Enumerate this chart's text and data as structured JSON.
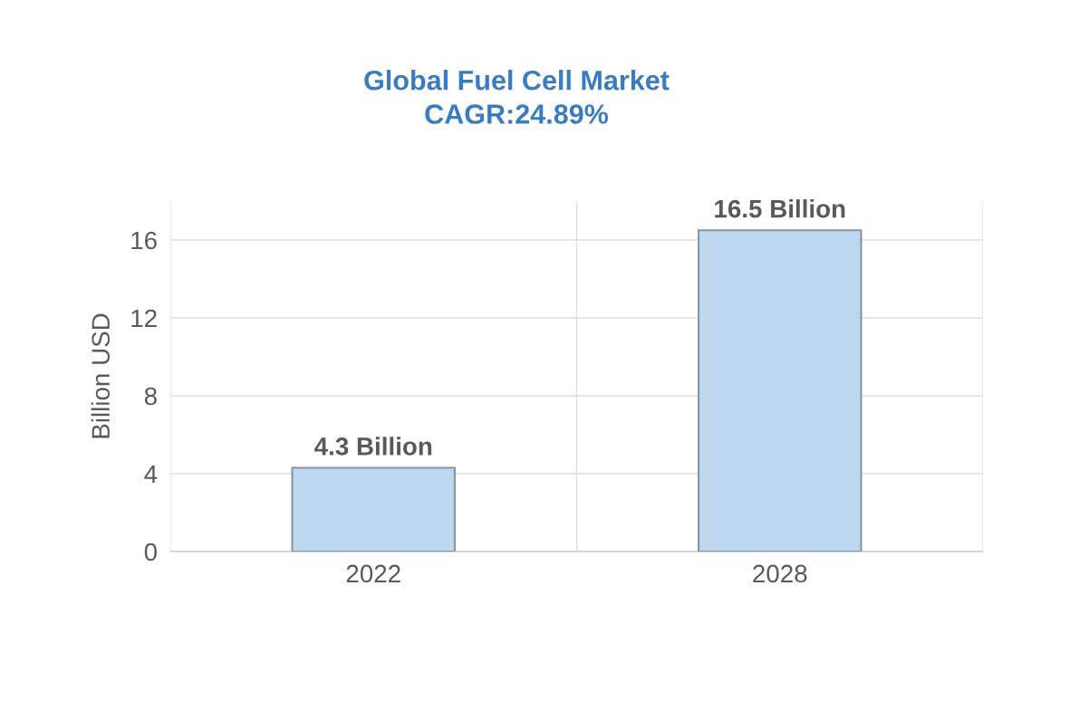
{
  "chart_data": {
    "type": "bar",
    "title": "Global Fuel Cell Market\nCAGR:24.89%",
    "ylabel": "Billion USD",
    "categories": [
      "2022",
      "2028"
    ],
    "values": [
      4.3,
      16.5
    ],
    "value_labels": [
      "4.3 Billion",
      "16.5 Billion"
    ],
    "color": "#bdd7ee",
    "ylim": [
      0,
      18
    ],
    "yticks": [
      0,
      4,
      8,
      12,
      16
    ],
    "grid": true
  }
}
